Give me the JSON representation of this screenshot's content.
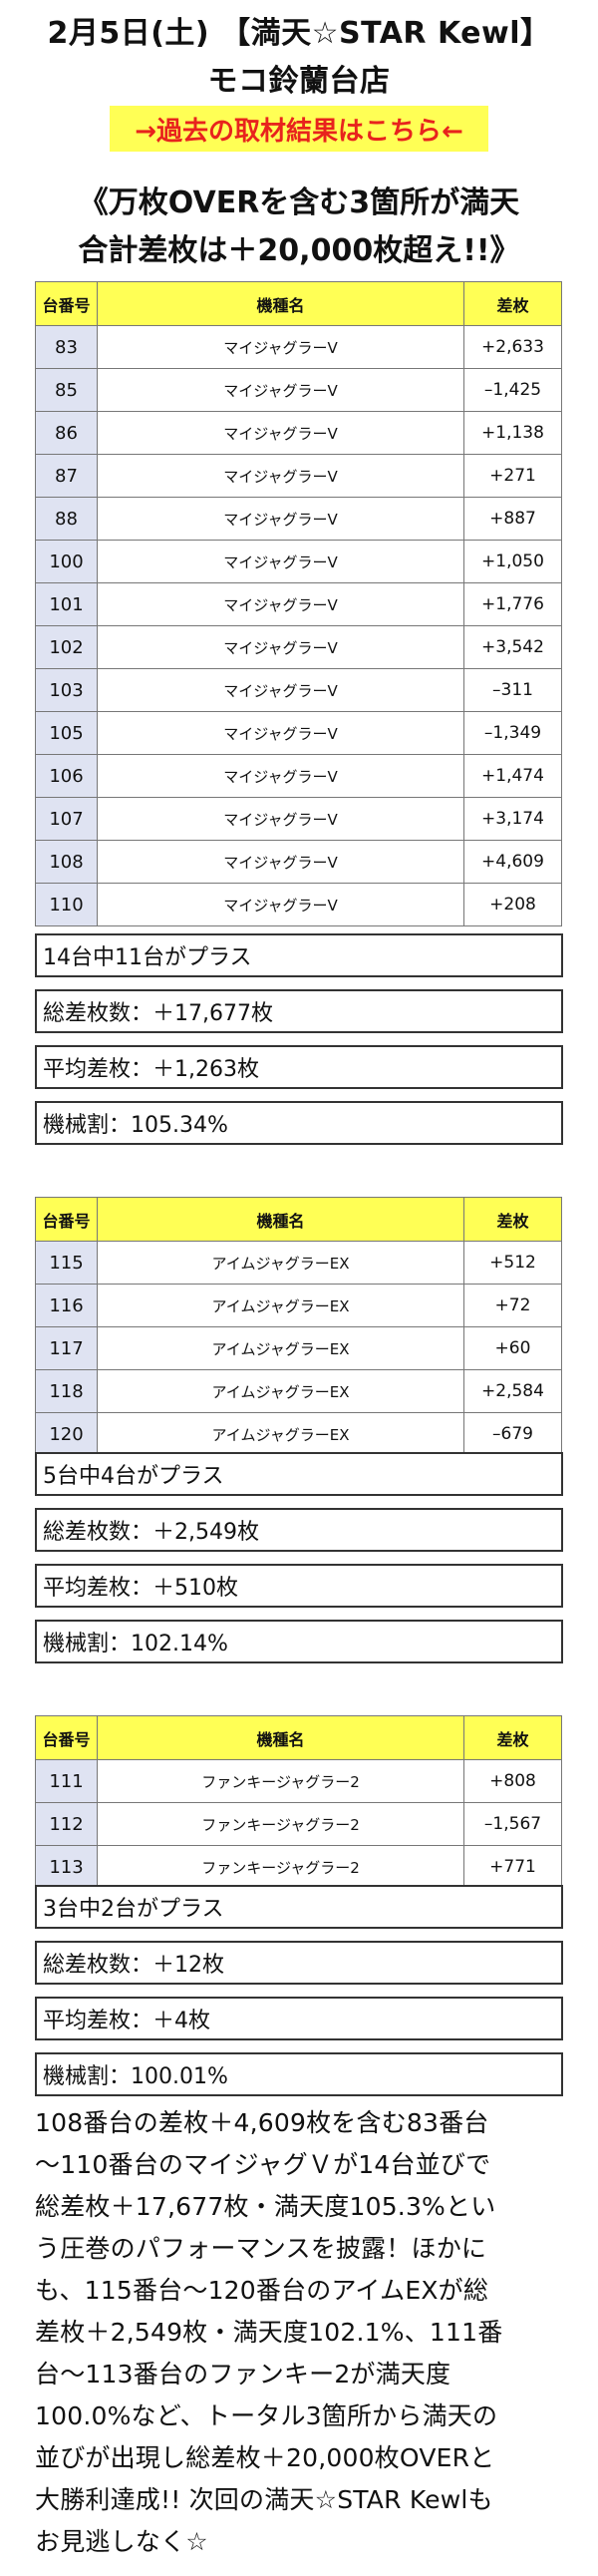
{
  "header": {
    "date_event": "2月5日(土) 【満天☆STAR Kewl】",
    "store": "モコ鈴蘭台店"
  },
  "link_banner": "→過去の取材結果はこちら←",
  "headline": {
    "line1": "《万枚OVERを含む3箇所が満天",
    "line2": "合計差枚は＋20,000枚超え!!》"
  },
  "columns": {
    "number": "台番号",
    "model": "機種名",
    "diff": "差枚"
  },
  "sections": [
    {
      "rows": [
        {
          "number": "83",
          "model": "マイジャグラーV",
          "diff": "+2,633"
        },
        {
          "number": "85",
          "model": "マイジャグラーV",
          "diff": "–1,425"
        },
        {
          "number": "86",
          "model": "マイジャグラーV",
          "diff": "+1,138"
        },
        {
          "number": "87",
          "model": "マイジャグラーV",
          "diff": "+271"
        },
        {
          "number": "88",
          "model": "マイジャグラーV",
          "diff": "+887"
        },
        {
          "number": "100",
          "model": "マイジャグラーV",
          "diff": "+1,050"
        },
        {
          "number": "101",
          "model": "マイジャグラーV",
          "diff": "+1,776"
        },
        {
          "number": "102",
          "model": "マイジャグラーV",
          "diff": "+3,542"
        },
        {
          "number": "103",
          "model": "マイジャグラーV",
          "diff": "–311"
        },
        {
          "number": "105",
          "model": "マイジャグラーV",
          "diff": "–1,349"
        },
        {
          "number": "106",
          "model": "マイジャグラーV",
          "diff": "+1,474"
        },
        {
          "number": "107",
          "model": "マイジャグラーV",
          "diff": "+3,174"
        },
        {
          "number": "108",
          "model": "マイジャグラーV",
          "diff": "+4,609"
        },
        {
          "number": "110",
          "model": "マイジャグラーV",
          "diff": "+208"
        }
      ],
      "stats": {
        "plus_count": "14台中11台がプラス",
        "total": "総差枚数：＋17,677枚",
        "average": "平均差枚：＋1,263枚",
        "payout": "機械割：105.34%"
      }
    },
    {
      "rows": [
        {
          "number": "115",
          "model": "アイムジャグラーEX",
          "diff": "+512"
        },
        {
          "number": "116",
          "model": "アイムジャグラーEX",
          "diff": "+72"
        },
        {
          "number": "117",
          "model": "アイムジャグラーEX",
          "diff": "+60"
        },
        {
          "number": "118",
          "model": "アイムジャグラーEX",
          "diff": "+2,584"
        },
        {
          "number": "120",
          "model": "アイムジャグラーEX",
          "diff": "–679"
        }
      ],
      "stats": {
        "plus_count": "5台中4台がプラス",
        "total": "総差枚数：＋2,549枚",
        "average": "平均差枚：＋510枚",
        "payout": "機械割：102.14%"
      }
    },
    {
      "rows": [
        {
          "number": "111",
          "model": "ファンキージャグラー2",
          "diff": "+808"
        },
        {
          "number": "112",
          "model": "ファンキージャグラー2",
          "diff": "–1,567"
        },
        {
          "number": "113",
          "model": "ファンキージャグラー2",
          "diff": "+771"
        }
      ],
      "stats": {
        "plus_count": "3台中2台がプラス",
        "total": "総差枚数：＋12枚",
        "average": "平均差枚：＋4枚",
        "payout": "機械割：100.01%"
      }
    }
  ],
  "summary_lines": [
    "108番台の差枚＋4,609枚を含む83番台",
    "〜110番台のマイジャグＶが14台並びで",
    "総差枚＋17,677枚・満天度105.3%とい",
    "う圧巻のパフォーマンスを披露！ほかに",
    "も、115番台〜120番台のアイムEXが総",
    "差枚＋2,549枚・満天度102.1%、111番",
    "台〜113番台のファンキー2が満天度",
    "100.0%など、トータル3箇所から満天の",
    "並びが出現し総差枚＋20,000枚OVERと",
    "大勝利達成!! 次回の満天☆STAR Kewlも",
    "お見逃しなく☆"
  ]
}
